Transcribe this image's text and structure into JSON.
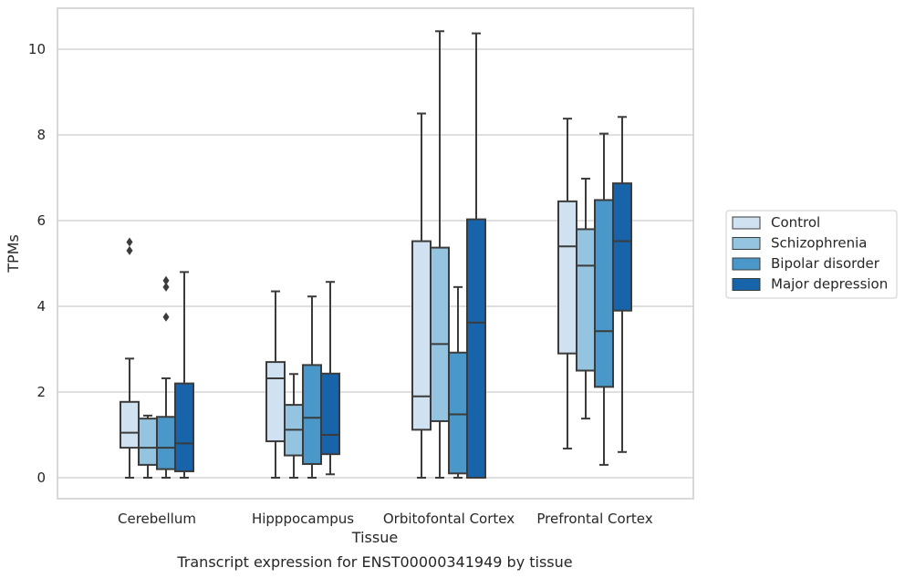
{
  "caption": "Transcript expression for ENST00000341949 by tissue",
  "chart_data": {
    "type": "box",
    "title": "",
    "xlabel": "Tissue",
    "ylabel": "TPMs",
    "ylim": [
      -0.5,
      10.95
    ],
    "yticks": [
      0,
      2,
      4,
      6,
      8,
      10
    ],
    "grid": true,
    "legend_placement": "center-right, outside plot",
    "categories": [
      "Cerebellum",
      "Hipppocampus",
      "Orbitofontal Cortex",
      "Prefrontal Cortex"
    ],
    "series": [
      {
        "name": "Control",
        "color": "#d0e1f2",
        "boxes": [
          {
            "whislo": 0.0,
            "q1": 0.7,
            "med": 1.05,
            "q3": 1.77,
            "whishi": 2.78,
            "fliers": [
              5.5,
              5.3
            ]
          },
          {
            "whislo": 0.0,
            "q1": 0.85,
            "med": 2.32,
            "q3": 2.7,
            "whishi": 4.35,
            "fliers": []
          },
          {
            "whislo": 0.0,
            "q1": 1.12,
            "med": 1.9,
            "q3": 5.52,
            "whishi": 8.5,
            "fliers": []
          },
          {
            "whislo": 0.68,
            "q1": 2.9,
            "med": 5.4,
            "q3": 6.45,
            "whishi": 8.38,
            "fliers": []
          }
        ]
      },
      {
        "name": "Schizophrenia",
        "color": "#94c4df",
        "boxes": [
          {
            "whislo": 0.0,
            "q1": 0.3,
            "med": 0.7,
            "q3": 1.38,
            "whishi": 1.45,
            "fliers": []
          },
          {
            "whislo": 0.0,
            "q1": 0.52,
            "med": 1.12,
            "q3": 1.7,
            "whishi": 2.42,
            "fliers": []
          },
          {
            "whislo": 0.0,
            "q1": 1.32,
            "med": 3.12,
            "q3": 5.37,
            "whishi": 10.42,
            "fliers": []
          },
          {
            "whislo": 1.38,
            "q1": 2.5,
            "med": 4.95,
            "q3": 5.8,
            "whishi": 6.98,
            "fliers": []
          }
        ]
      },
      {
        "name": "Bipolar disorder",
        "color": "#4a98c9",
        "boxes": [
          {
            "whislo": 0.0,
            "q1": 0.2,
            "med": 0.7,
            "q3": 1.42,
            "whishi": 2.32,
            "fliers": [
              4.6,
              4.45,
              3.75
            ]
          },
          {
            "whislo": 0.0,
            "q1": 0.32,
            "med": 1.4,
            "q3": 2.63,
            "whishi": 4.23,
            "fliers": []
          },
          {
            "whislo": 0.0,
            "q1": 0.1,
            "med": 1.48,
            "q3": 2.92,
            "whishi": 4.45,
            "fliers": []
          },
          {
            "whislo": 0.3,
            "q1": 2.12,
            "med": 3.42,
            "q3": 6.48,
            "whishi": 8.03,
            "fliers": []
          }
        ]
      },
      {
        "name": "Major depression",
        "color": "#1764ab",
        "boxes": [
          {
            "whislo": 0.0,
            "q1": 0.15,
            "med": 0.8,
            "q3": 2.2,
            "whishi": 4.8,
            "fliers": []
          },
          {
            "whislo": 0.08,
            "q1": 0.55,
            "med": 1.0,
            "q3": 2.43,
            "whishi": 4.57,
            "fliers": []
          },
          {
            "whislo": 0.0,
            "q1": 0.0,
            "med": 3.62,
            "q3": 6.03,
            "whishi": 10.37,
            "fliers": []
          },
          {
            "whislo": 0.6,
            "q1": 3.9,
            "med": 5.52,
            "q3": 6.87,
            "whishi": 8.42,
            "fliers": []
          }
        ]
      }
    ]
  }
}
